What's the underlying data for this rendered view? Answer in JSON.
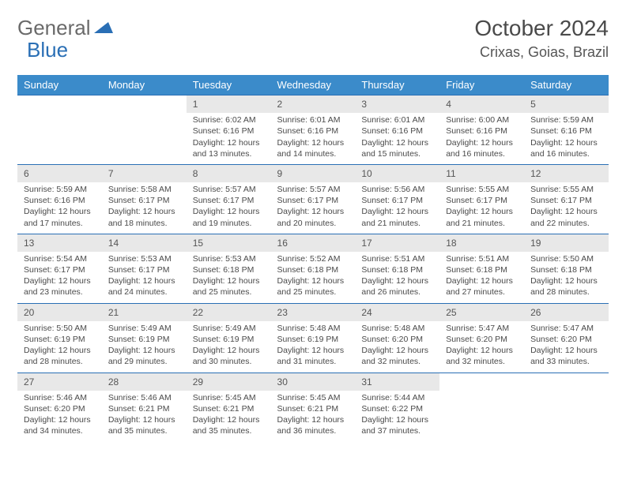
{
  "logo": {
    "part1": "General",
    "part2": "Blue"
  },
  "title": "October 2024",
  "location": "Crixas, Goias, Brazil",
  "day_headers": [
    "Sunday",
    "Monday",
    "Tuesday",
    "Wednesday",
    "Thursday",
    "Friday",
    "Saturday"
  ],
  "colors": {
    "header_bg": "#3b8bca",
    "header_text": "#ffffff",
    "border": "#2a6fb5",
    "daynum_bg": "#e8e8e8",
    "text": "#4a4a4a",
    "logo_gray": "#6a6a6a",
    "logo_blue": "#2a6fb5"
  },
  "weeks": [
    [
      null,
      null,
      {
        "n": "1",
        "sr": "6:02 AM",
        "ss": "6:16 PM",
        "dl": "12 hours and 13 minutes."
      },
      {
        "n": "2",
        "sr": "6:01 AM",
        "ss": "6:16 PM",
        "dl": "12 hours and 14 minutes."
      },
      {
        "n": "3",
        "sr": "6:01 AM",
        "ss": "6:16 PM",
        "dl": "12 hours and 15 minutes."
      },
      {
        "n": "4",
        "sr": "6:00 AM",
        "ss": "6:16 PM",
        "dl": "12 hours and 16 minutes."
      },
      {
        "n": "5",
        "sr": "5:59 AM",
        "ss": "6:16 PM",
        "dl": "12 hours and 16 minutes."
      }
    ],
    [
      {
        "n": "6",
        "sr": "5:59 AM",
        "ss": "6:16 PM",
        "dl": "12 hours and 17 minutes."
      },
      {
        "n": "7",
        "sr": "5:58 AM",
        "ss": "6:17 PM",
        "dl": "12 hours and 18 minutes."
      },
      {
        "n": "8",
        "sr": "5:57 AM",
        "ss": "6:17 PM",
        "dl": "12 hours and 19 minutes."
      },
      {
        "n": "9",
        "sr": "5:57 AM",
        "ss": "6:17 PM",
        "dl": "12 hours and 20 minutes."
      },
      {
        "n": "10",
        "sr": "5:56 AM",
        "ss": "6:17 PM",
        "dl": "12 hours and 21 minutes."
      },
      {
        "n": "11",
        "sr": "5:55 AM",
        "ss": "6:17 PM",
        "dl": "12 hours and 21 minutes."
      },
      {
        "n": "12",
        "sr": "5:55 AM",
        "ss": "6:17 PM",
        "dl": "12 hours and 22 minutes."
      }
    ],
    [
      {
        "n": "13",
        "sr": "5:54 AM",
        "ss": "6:17 PM",
        "dl": "12 hours and 23 minutes."
      },
      {
        "n": "14",
        "sr": "5:53 AM",
        "ss": "6:17 PM",
        "dl": "12 hours and 24 minutes."
      },
      {
        "n": "15",
        "sr": "5:53 AM",
        "ss": "6:18 PM",
        "dl": "12 hours and 25 minutes."
      },
      {
        "n": "16",
        "sr": "5:52 AM",
        "ss": "6:18 PM",
        "dl": "12 hours and 25 minutes."
      },
      {
        "n": "17",
        "sr": "5:51 AM",
        "ss": "6:18 PM",
        "dl": "12 hours and 26 minutes."
      },
      {
        "n": "18",
        "sr": "5:51 AM",
        "ss": "6:18 PM",
        "dl": "12 hours and 27 minutes."
      },
      {
        "n": "19",
        "sr": "5:50 AM",
        "ss": "6:18 PM",
        "dl": "12 hours and 28 minutes."
      }
    ],
    [
      {
        "n": "20",
        "sr": "5:50 AM",
        "ss": "6:19 PM",
        "dl": "12 hours and 28 minutes."
      },
      {
        "n": "21",
        "sr": "5:49 AM",
        "ss": "6:19 PM",
        "dl": "12 hours and 29 minutes."
      },
      {
        "n": "22",
        "sr": "5:49 AM",
        "ss": "6:19 PM",
        "dl": "12 hours and 30 minutes."
      },
      {
        "n": "23",
        "sr": "5:48 AM",
        "ss": "6:19 PM",
        "dl": "12 hours and 31 minutes."
      },
      {
        "n": "24",
        "sr": "5:48 AM",
        "ss": "6:20 PM",
        "dl": "12 hours and 32 minutes."
      },
      {
        "n": "25",
        "sr": "5:47 AM",
        "ss": "6:20 PM",
        "dl": "12 hours and 32 minutes."
      },
      {
        "n": "26",
        "sr": "5:47 AM",
        "ss": "6:20 PM",
        "dl": "12 hours and 33 minutes."
      }
    ],
    [
      {
        "n": "27",
        "sr": "5:46 AM",
        "ss": "6:20 PM",
        "dl": "12 hours and 34 minutes."
      },
      {
        "n": "28",
        "sr": "5:46 AM",
        "ss": "6:21 PM",
        "dl": "12 hours and 35 minutes."
      },
      {
        "n": "29",
        "sr": "5:45 AM",
        "ss": "6:21 PM",
        "dl": "12 hours and 35 minutes."
      },
      {
        "n": "30",
        "sr": "5:45 AM",
        "ss": "6:21 PM",
        "dl": "12 hours and 36 minutes."
      },
      {
        "n": "31",
        "sr": "5:44 AM",
        "ss": "6:22 PM",
        "dl": "12 hours and 37 minutes."
      },
      null,
      null
    ]
  ],
  "labels": {
    "sunrise": "Sunrise: ",
    "sunset": "Sunset: ",
    "daylight": "Daylight: "
  }
}
